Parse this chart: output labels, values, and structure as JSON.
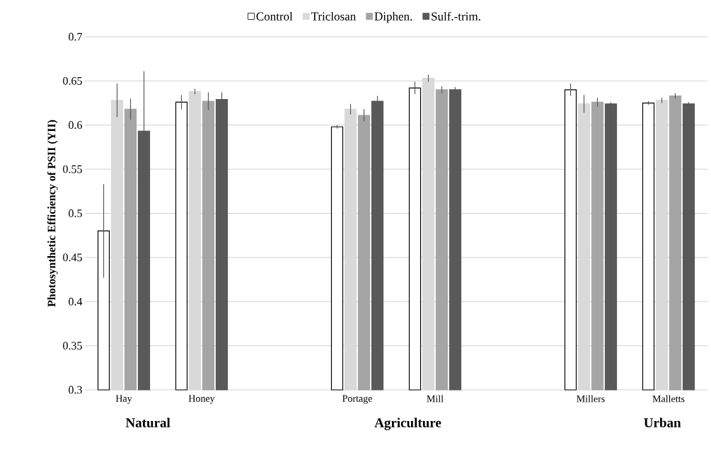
{
  "chart_data": {
    "type": "bar",
    "ylabel": "Photosynthetic Efficiency of PSII  (YII)",
    "categories": [
      "Hay",
      "Honey",
      null,
      "Portage",
      "Mill",
      null,
      "Millers",
      "Malletts"
    ],
    "series": [
      {
        "name": "Control",
        "color": "#ffffff",
        "values": [
          0.48,
          0.626,
          null,
          0.598,
          0.642,
          null,
          0.64,
          0.625
        ],
        "errors": [
          0.053,
          0.008,
          null,
          0.002,
          0.007,
          null,
          0.007,
          0.002
        ]
      },
      {
        "name": "Triclosan",
        "color": "#d9d9d9",
        "values": [
          0.628,
          0.638,
          null,
          0.618,
          0.653,
          null,
          0.624,
          0.628
        ],
        "errors": [
          0.019,
          0.003,
          null,
          0.006,
          0.004,
          null,
          0.01,
          0.003
        ]
      },
      {
        "name": "Diphen.",
        "color": "#a5a5a5",
        "values": [
          0.618,
          0.627,
          null,
          0.611,
          0.64,
          null,
          0.626,
          0.633
        ],
        "errors": [
          0.012,
          0.01,
          null,
          0.007,
          0.004,
          null,
          0.005,
          0.003
        ]
      },
      {
        "name": "Sulf.-trim.",
        "color": "#595959",
        "values": [
          0.593,
          0.629,
          null,
          0.627,
          0.64,
          null,
          0.624,
          0.624
        ],
        "errors": [
          0.068,
          0.008,
          null,
          0.006,
          0.003,
          null,
          0.002,
          0.002
        ]
      }
    ],
    "ylim": [
      0.3,
      0.7
    ],
    "yticks": [
      0.3,
      0.35,
      0.4,
      0.45,
      0.5,
      0.55,
      0.6,
      0.65,
      0.7
    ],
    "grid": "y",
    "legend": "top",
    "annotations": [
      "Natural",
      "Agriculture",
      "Urban"
    ]
  }
}
